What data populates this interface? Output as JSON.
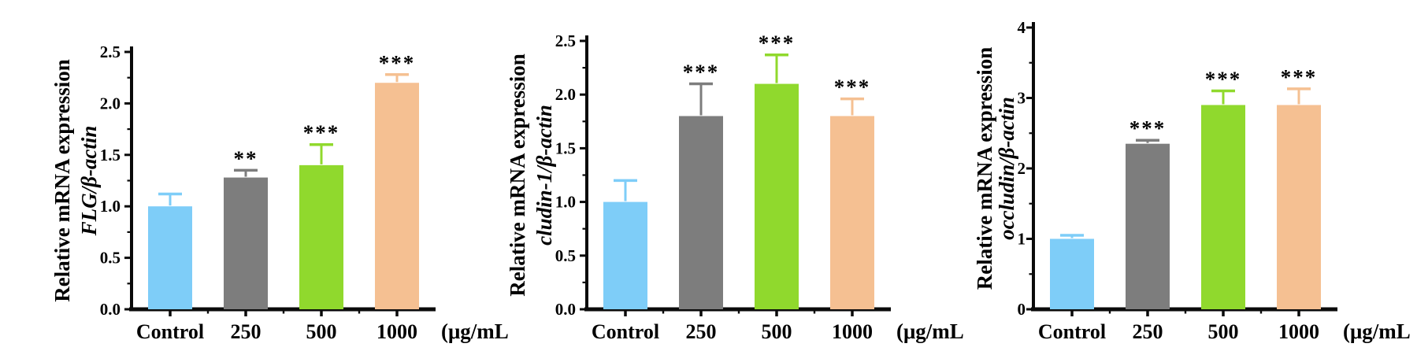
{
  "page": {
    "background_color": "#ffffff",
    "axis_color": "#0a0a0a",
    "significance_color": "#3a3a3a"
  },
  "chart_data": [
    {
      "id": "flg",
      "type": "bar",
      "title": "",
      "ylabel_line1": "Relative mRNA expression",
      "ylabel_line2": "FLG/β-actin",
      "xlabel_unit": "(μg/mL",
      "categories": [
        "Control",
        "250",
        "500",
        "1000"
      ],
      "values": [
        1.0,
        1.28,
        1.4,
        2.2
      ],
      "errors": [
        0.12,
        0.07,
        0.2,
        0.08
      ],
      "significance": [
        "",
        "**",
        "***",
        "***"
      ],
      "bar_colors": [
        "#7ECDF8",
        "#7D7D7D",
        "#90D92D",
        "#F5C092"
      ],
      "ylim": [
        0,
        2.5
      ],
      "yticks": [
        0,
        0.5,
        1.0,
        1.5,
        2.0,
        2.5
      ],
      "ytick_labels": [
        "0.0",
        "0.5",
        "1.0",
        "1.5",
        "2.0",
        "2.5"
      ],
      "grid": false,
      "legend": "none"
    },
    {
      "id": "cludin-1",
      "type": "bar",
      "title": "",
      "ylabel_line1": "Relative mRNA expression",
      "ylabel_line2": "cludin-1/β-actin",
      "xlabel_unit": "(μg/mL",
      "categories": [
        "Control",
        "250",
        "500",
        "1000"
      ],
      "values": [
        1.0,
        1.8,
        2.1,
        1.8
      ],
      "errors": [
        0.2,
        0.3,
        0.27,
        0.16
      ],
      "significance": [
        "",
        "***",
        "***",
        "***"
      ],
      "bar_colors": [
        "#7ECDF8",
        "#7D7D7D",
        "#90D92D",
        "#F5C092"
      ],
      "ylim": [
        0,
        2.5
      ],
      "yticks": [
        0,
        0.5,
        1.0,
        1.5,
        2.0,
        2.5
      ],
      "ytick_labels": [
        "0.0",
        "0.5",
        "1.0",
        "1.5",
        "2.0",
        "2.5"
      ],
      "grid": false,
      "legend": "none"
    },
    {
      "id": "occludin",
      "type": "bar",
      "title": "",
      "ylabel_line1": "Relative mRNA expression",
      "ylabel_line2": "occludin/β-actin",
      "xlabel_unit": "(μg/mL",
      "categories": [
        "Control",
        "250",
        "500",
        "1000"
      ],
      "values": [
        1.0,
        2.35,
        2.9,
        2.9
      ],
      "errors": [
        0.05,
        0.05,
        0.2,
        0.23
      ],
      "significance": [
        "",
        "***",
        "***",
        "***"
      ],
      "bar_colors": [
        "#7ECDF8",
        "#7D7D7D",
        "#90D92D",
        "#F5C092"
      ],
      "ylim": [
        0,
        4
      ],
      "yticks": [
        0,
        1,
        2,
        3,
        4
      ],
      "ytick_labels": [
        "0",
        "1",
        "2",
        "3",
        "4"
      ],
      "grid": false,
      "legend": "none"
    }
  ]
}
